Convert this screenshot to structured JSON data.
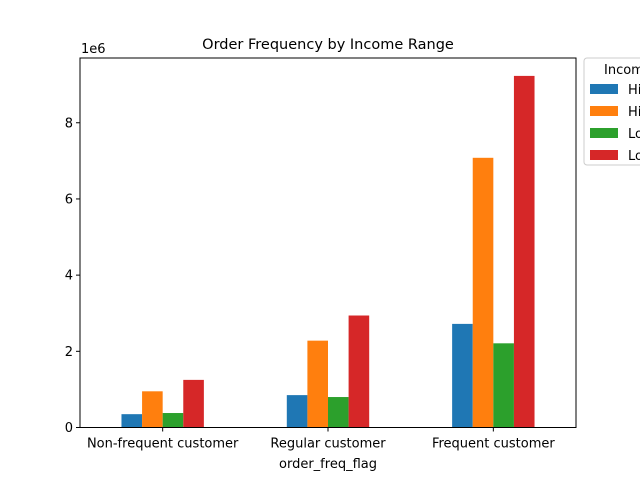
{
  "chart_data": {
    "type": "bar",
    "title": "Order Frequency by Income Range",
    "xlabel": "order_freq_flag",
    "ylabel": "",
    "y_scale_label": "1e6",
    "categories": [
      "Non-frequent customer",
      "Regular customer",
      "Frequent customer"
    ],
    "y_ticks": [
      "0",
      "2",
      "4",
      "6",
      "8"
    ],
    "ylim": [
      0,
      9.7
    ],
    "y_unit": "millions",
    "legend": {
      "title": "Incom",
      "placement": "outside-top-right",
      "entries_visible": [
        "Hi",
        "Hi",
        "Lo",
        "Lo"
      ]
    },
    "series": [
      {
        "label_visible": "Hi",
        "color": "#1f77b4",
        "values": [
          0.35,
          0.85,
          2.72
        ]
      },
      {
        "label_visible": "Hi",
        "color": "#ff7f0e",
        "values": [
          0.95,
          2.28,
          7.08
        ]
      },
      {
        "label_visible": "Lo",
        "color": "#2ca02c",
        "values": [
          0.38,
          0.8,
          2.21
        ]
      },
      {
        "label_visible": "Lo",
        "color": "#d62728",
        "values": [
          1.25,
          2.94,
          9.23
        ]
      }
    ],
    "grid": false
  }
}
